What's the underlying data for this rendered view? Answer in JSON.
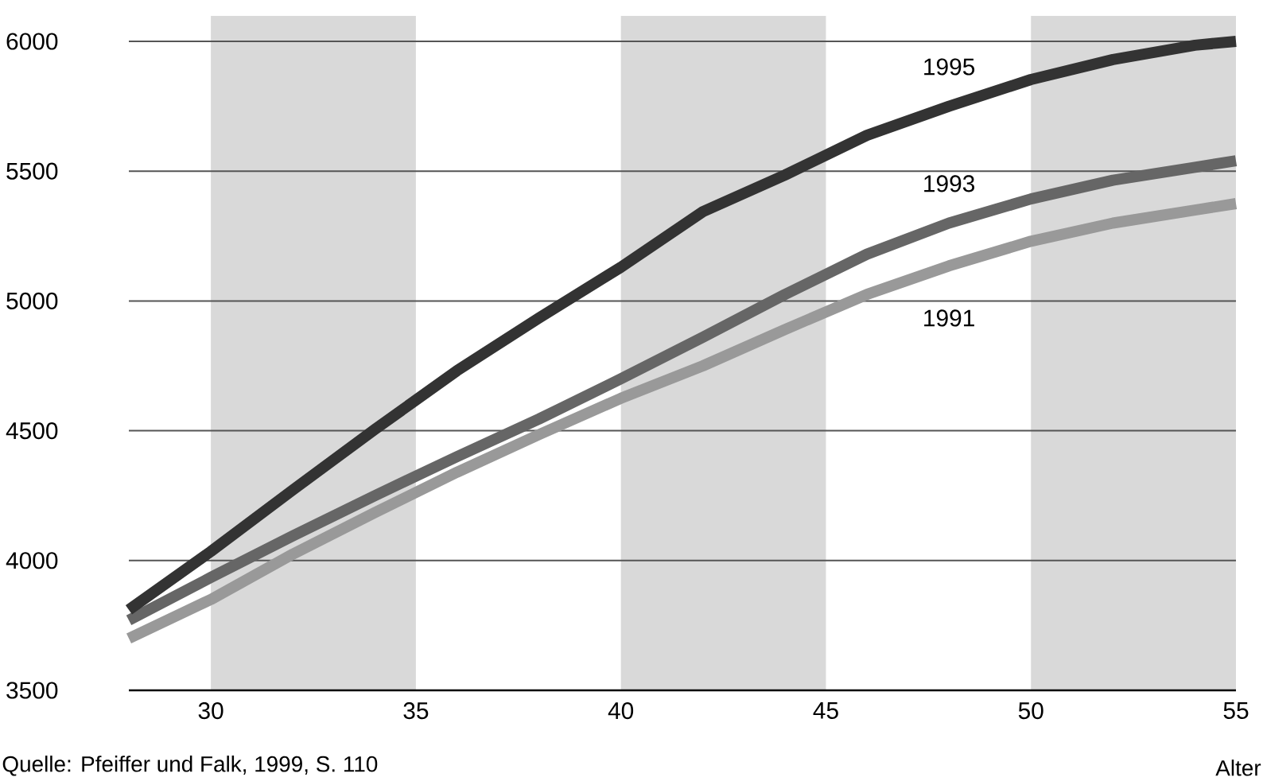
{
  "chart_data": {
    "type": "line",
    "xlabel": "Alter",
    "annotations": [
      "Quelle: Pfeiffer und Falk, 1999, S. 110"
    ],
    "x": [
      28,
      30,
      32,
      34,
      36,
      38,
      40,
      42,
      44,
      46,
      48,
      50,
      52,
      54,
      55
    ],
    "xlim": [
      28,
      55
    ],
    "ylim": [
      3500,
      6000
    ],
    "xticks": [
      30,
      35,
      40,
      45,
      50,
      55
    ],
    "yticks": [
      3500,
      4000,
      4500,
      5000,
      5500,
      6000
    ],
    "grid": "y",
    "line_style": "solid",
    "marker": "none",
    "series": [
      {
        "name": "1991",
        "color": "#999999",
        "values": [
          3700,
          3850,
          4025,
          4185,
          4340,
          4485,
          4625,
          4750,
          4890,
          5025,
          5135,
          5230,
          5300,
          5350,
          5375
        ]
      },
      {
        "name": "1993",
        "color": "#666666",
        "values": [
          3770,
          3935,
          4095,
          4250,
          4400,
          4545,
          4700,
          4860,
          5025,
          5180,
          5300,
          5393,
          5465,
          5515,
          5540
        ]
      },
      {
        "name": "1995",
        "color": "#333333",
        "values": [
          3810,
          4035,
          4272,
          4505,
          4731,
          4934,
          5130,
          5344,
          5485,
          5638,
          5750,
          5853,
          5930,
          5985,
          6000
        ]
      }
    ],
    "bands": [
      {
        "axis": "x",
        "from": 30,
        "to": 35,
        "color": "#d9d9d9"
      },
      {
        "axis": "x",
        "from": 40,
        "to": 45,
        "color": "#d9d9d9"
      },
      {
        "axis": "x",
        "from": 50,
        "to": 55,
        "color": "#d9d9d9"
      }
    ]
  }
}
